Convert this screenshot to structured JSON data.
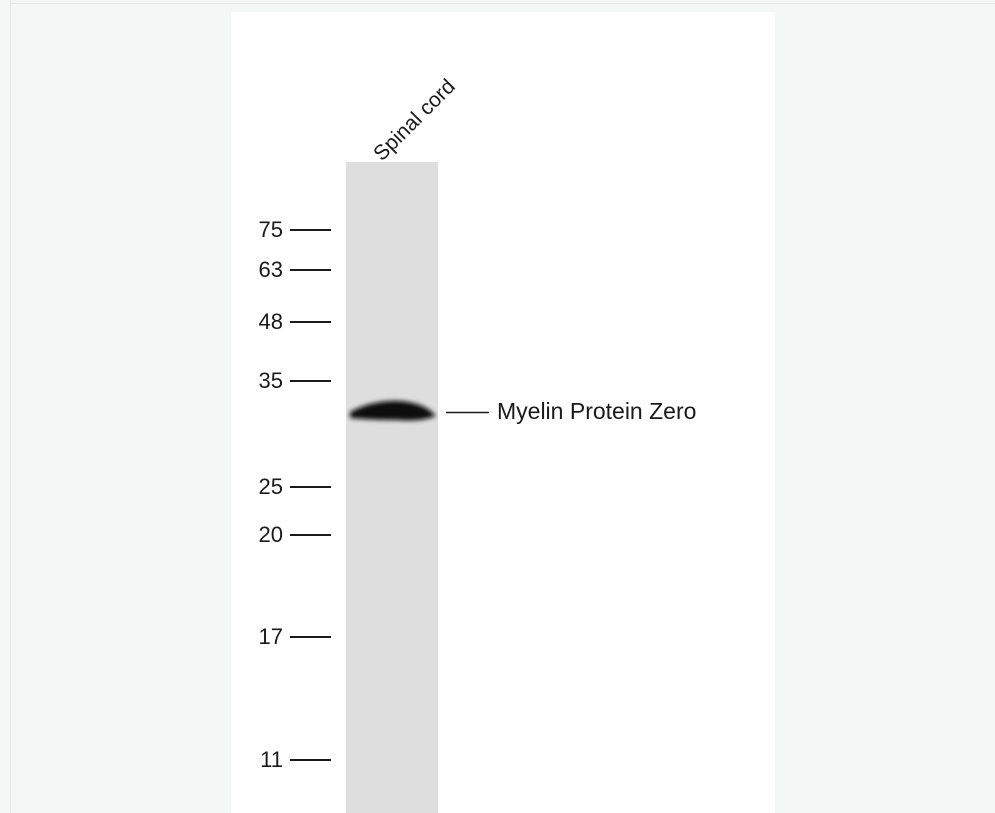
{
  "lane_label": "Spinal cord",
  "markers": [
    "75",
    "63",
    "48",
    "35",
    "25",
    "20",
    "17",
    "11"
  ],
  "band_label": "Myelin Protein Zero"
}
